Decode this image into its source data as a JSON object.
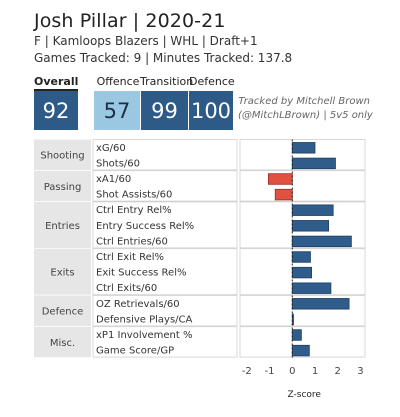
{
  "header": {
    "title": "Josh Pillar | 2020-21",
    "subtitle": "F | Kamloops Blazers | WHL | Draft+1",
    "stats_line": "Games Tracked: 9 | Minutes Tracked: 137.8"
  },
  "ratings": {
    "overall": {
      "label": "Overall",
      "value": "92"
    },
    "offence": {
      "label": "Offence",
      "value": "57"
    },
    "transition": {
      "label": "Transition",
      "value": "99"
    },
    "defence": {
      "label": "Defence",
      "value": "100"
    }
  },
  "credit": {
    "line1": "Tracked by Mitchell Brown",
    "line2": "(@MitchLBrown) | 5v5 only"
  },
  "colors": {
    "positive": "#2f5c8a",
    "negative": "#e0513f",
    "light_blue": "#9ac8e3",
    "dark_blue": "#2d5a86",
    "category_bg": "#e6e6e6"
  },
  "chart_data": {
    "type": "bar",
    "orientation": "horizontal",
    "xlabel": "Z-score",
    "xlim": [
      -2.3,
      3.2
    ],
    "xticks": [
      -2,
      -1,
      0,
      1,
      2,
      3
    ],
    "reference_line": 0,
    "groups": [
      {
        "name": "Shooting",
        "metrics": [
          {
            "label": "xG/60",
            "value": 1.0
          },
          {
            "label": "Shots/60",
            "value": 1.9
          }
        ]
      },
      {
        "name": "Passing",
        "metrics": [
          {
            "label": "xA1/60",
            "value": -1.05
          },
          {
            "label": "Shot Assists/60",
            "value": -0.75
          }
        ]
      },
      {
        "name": "Entries",
        "metrics": [
          {
            "label": "Ctrl Entry Rel%",
            "value": 1.8
          },
          {
            "label": "Entry Success Rel%",
            "value": 1.6
          },
          {
            "label": "Ctrl Entries/60",
            "value": 2.6
          }
        ]
      },
      {
        "name": "Exits",
        "metrics": [
          {
            "label": "Ctrl Exit Rel%",
            "value": 0.8
          },
          {
            "label": "Exit Success Rel%",
            "value": 0.85
          },
          {
            "label": "Ctrl Exits/60",
            "value": 1.7
          }
        ]
      },
      {
        "name": "Defence",
        "metrics": [
          {
            "label": "OZ Retrievals/60",
            "value": 2.5
          },
          {
            "label": "Defensive Plays/CA",
            "value": 0.05
          }
        ]
      },
      {
        "name": "Misc.",
        "metrics": [
          {
            "label": "xP1 Involvement %",
            "value": 0.4
          },
          {
            "label": "Game Score/GP",
            "value": 0.75
          }
        ]
      }
    ]
  }
}
